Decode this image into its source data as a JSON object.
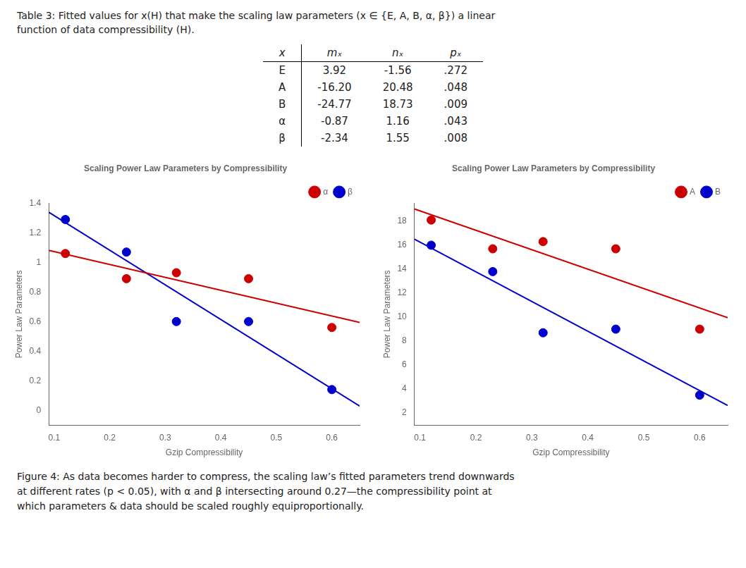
{
  "chart_data": [
    {
      "type": "table",
      "title": "Table 3: Fitted values for x(H) that make the scaling law parameters (x ∈ {E, A, B, α, β}) a linear\nfunction of data compressibility (H).",
      "xlabel": "x",
      "categories": [
        "E",
        "A",
        "B",
        "α",
        "β"
      ],
      "series": [
        {
          "name": "mₓ",
          "values": [
            3.92,
            -16.2,
            -24.77,
            -0.87,
            -2.34
          ],
          "value_labels": [
            "3.92",
            "-16.20",
            "-24.77",
            "-0.87",
            "-2.34"
          ]
        },
        {
          "name": "nₓ",
          "values": [
            -1.56,
            20.48,
            18.73,
            1.16,
            1.55
          ],
          "value_labels": [
            "-1.56",
            "20.48",
            "18.73",
            "1.16",
            "1.55"
          ]
        },
        {
          "name": "pₓ",
          "values": [
            0.272,
            0.048,
            0.009,
            0.043,
            0.008
          ],
          "value_labels": [
            ".272",
            ".048",
            ".009",
            ".043",
            ".008"
          ]
        }
      ]
    },
    {
      "type": "scatter",
      "title": "Scaling Power Law Parameters by Compressibility",
      "xlabel": "Gzip Compressibility",
      "ylabel": "Power Law Parameters",
      "x": [
        0.12,
        0.23,
        0.32,
        0.45,
        0.6
      ],
      "series": [
        {
          "name": "α",
          "type": "scatter",
          "marker": "o",
          "color": "#cc0000",
          "values": [
            1.06,
            0.89,
            0.93,
            0.89,
            0.56
          ]
        },
        {
          "name": "β",
          "type": "scatter",
          "marker": "o",
          "color": "#0000cc",
          "values": [
            1.29,
            1.07,
            0.6,
            0.6,
            0.14
          ]
        },
        {
          "type": "line",
          "line_style": "solid",
          "color": "#cc0000",
          "x": [
            0.09,
            0.65
          ],
          "values": [
            1.0817,
            0.5945
          ]
        },
        {
          "type": "line",
          "line_style": "solid",
          "color": "#0000cc",
          "x": [
            0.09,
            0.65
          ],
          "values": [
            1.3394,
            0.029
          ]
        }
      ],
      "xlim": [
        0.09,
        0.65
      ],
      "xticks": [
        0.1,
        0.2,
        0.3,
        0.4,
        0.5,
        0.6
      ],
      "ylim": [
        -0.1,
        1.4
      ],
      "yticks": [
        0,
        0.2,
        0.4,
        0.6,
        0.8,
        1,
        1.2,
        1.4
      ],
      "grid": false,
      "legend": "upper right"
    },
    {
      "type": "scatter",
      "title": "Scaling Power Law Parameters by Compressibility",
      "xlabel": "Gzip Compressibility",
      "ylabel": "Power Law Parameters",
      "x": [
        0.12,
        0.23,
        0.32,
        0.45,
        0.6
      ],
      "series": [
        {
          "name": "A",
          "type": "scatter",
          "marker": "o",
          "color": "#cc0000",
          "values": [
            18.1,
            15.7,
            16.3,
            15.7,
            9.0
          ]
        },
        {
          "name": "B",
          "type": "scatter",
          "marker": "o",
          "color": "#0000cc",
          "values": [
            16.0,
            13.8,
            8.7,
            9.0,
            3.5
          ]
        },
        {
          "type": "line",
          "line_style": "solid",
          "color": "#cc0000",
          "x": [
            0.09,
            0.65
          ],
          "values": [
            19.022,
            9.95
          ]
        },
        {
          "type": "line",
          "line_style": "solid",
          "color": "#0000cc",
          "x": [
            0.09,
            0.65
          ],
          "values": [
            16.5007,
            2.6295
          ]
        }
      ],
      "xlim": [
        0.09,
        0.65
      ],
      "xticks": [
        0.1,
        0.2,
        0.3,
        0.4,
        0.5,
        0.6
      ],
      "ylim": [
        1,
        19.5
      ],
      "yticks": [
        2,
        4,
        6,
        8,
        10,
        12,
        14,
        16,
        18
      ],
      "grid": false,
      "legend": "upper right",
      "annotations": [
        "Figure 4: As data becomes harder to compress, the scaling law’s fitted parameters trend downwards\nat different rates (p < 0.05), with α and β intersecting around 0.27—the compressibility point at\nwhich parameters & data should be scaled roughly equiproportionally."
      ]
    }
  ]
}
